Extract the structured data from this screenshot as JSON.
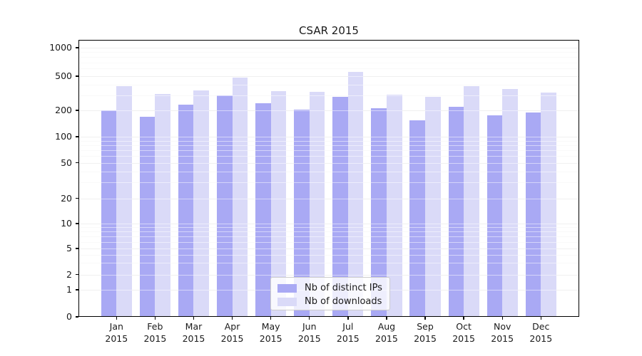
{
  "chart_data": {
    "type": "bar",
    "title": "CSAR 2015",
    "months": [
      "Jan",
      "Feb",
      "Mar",
      "Apr",
      "May",
      "Jun",
      "Jul",
      "Aug",
      "Sep",
      "Oct",
      "Nov",
      "Dec"
    ],
    "year": "2015",
    "categories": [
      "Jan 2015",
      "Feb 2015",
      "Mar 2015",
      "Apr 2015",
      "May 2015",
      "Jun 2015",
      "Jul 2015",
      "Aug 2015",
      "Sep 2015",
      "Oct 2015",
      "Nov 2015",
      "Dec 2015"
    ],
    "series": [
      {
        "name": "Nb of distinct IPs",
        "color": "#a9a9f4",
        "values": [
          200,
          170,
          235,
          300,
          240,
          205,
          290,
          210,
          155,
          220,
          175,
          190
        ]
      },
      {
        "name": "Nb of downloads",
        "color": "#dadaf8",
        "values": [
          380,
          310,
          340,
          480,
          335,
          330,
          550,
          305,
          290,
          385,
          355,
          325
        ]
      }
    ],
    "yscale": "symlog",
    "yticks": [
      0,
      1,
      2,
      5,
      10,
      20,
      50,
      100,
      200,
      500,
      1000
    ],
    "ylim": [
      0,
      1200
    ],
    "xlabel": "",
    "ylabel": "",
    "grid": true,
    "legend_position": "lower center",
    "colors": {
      "grid_major": "#e0e0e0",
      "grid_minor": "#f3f3f3",
      "spine": "#000000",
      "background": "#ffffff"
    }
  }
}
